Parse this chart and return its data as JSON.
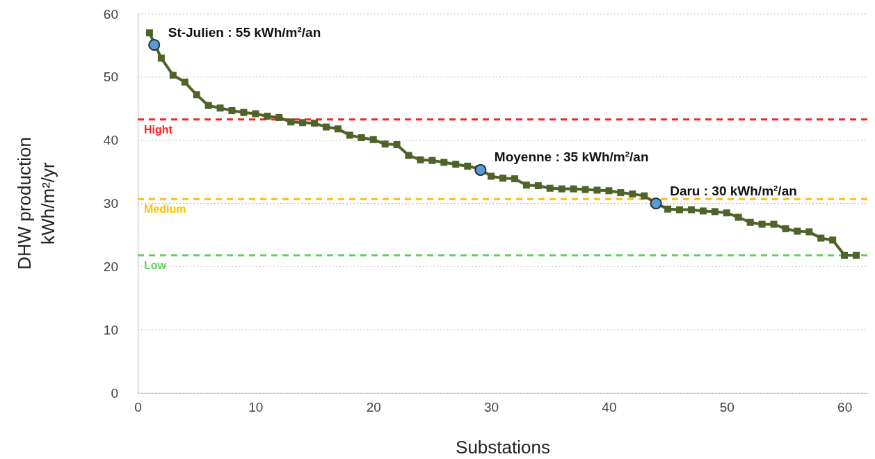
{
  "chart_data": {
    "type": "line",
    "xlabel": "Substations",
    "ylabel": "DHW production\nkWh/m²/yr",
    "xlim": [
      0,
      62
    ],
    "ylim": [
      0,
      60
    ],
    "xticks": [
      0,
      10,
      20,
      30,
      40,
      50,
      60
    ],
    "yticks": [
      0,
      10,
      20,
      30,
      40,
      50,
      60
    ],
    "grid": "y",
    "series": [
      {
        "color": "#4f6228",
        "marker": "square",
        "x": [
          1,
          2,
          3,
          4,
          5,
          6,
          7,
          8,
          9,
          10,
          11,
          12,
          13,
          14,
          15,
          16,
          17,
          18,
          19,
          20,
          21,
          22,
          23,
          24,
          25,
          26,
          27,
          28,
          29,
          30,
          31,
          32,
          33,
          34,
          35,
          36,
          37,
          38,
          39,
          40,
          41,
          42,
          43,
          44,
          45,
          46,
          47,
          48,
          49,
          50,
          51,
          52,
          53,
          54,
          55,
          56,
          57,
          58,
          59,
          60,
          61
        ],
        "values": [
          57,
          53,
          50.3,
          49.2,
          47.2,
          45.5,
          45.1,
          44.7,
          44.4,
          44.2,
          43.8,
          43.6,
          42.9,
          42.8,
          42.7,
          42.1,
          41.8,
          40.8,
          40.4,
          40.1,
          39.4,
          39.3,
          37.6,
          36.9,
          36.8,
          36.5,
          36.2,
          35.9,
          35.5,
          34.3,
          34,
          33.9,
          32.9,
          32.8,
          32.4,
          32.3,
          32.3,
          32.2,
          32.1,
          32,
          31.7,
          31.5,
          31.2,
          30,
          29.1,
          29,
          29,
          28.8,
          28.7,
          28.5,
          27.8,
          27,
          26.7,
          26.7,
          26,
          25.6,
          25.5,
          24.5,
          24.2,
          21.8,
          21.8
        ]
      },
      {
        "type": "scatter",
        "color": "#5b9bd5",
        "marker": "circle",
        "x": [
          1.4,
          29.1,
          44
        ],
        "values": [
          55.1,
          35.3,
          30
        ]
      }
    ],
    "ref_lines": [
      {
        "axis": "y",
        "value": 43.3,
        "label": "Hight",
        "color": "#ff2020",
        "line_style": "dashed"
      },
      {
        "axis": "y",
        "value": 30.7,
        "label": "Medium",
        "color": "#ffc000",
        "line_style": "dashed"
      },
      {
        "axis": "y",
        "value": 21.8,
        "label": "Low",
        "color": "#5ed25e",
        "line_style": "dashed"
      }
    ],
    "annotations": [
      {
        "text": "St-Julien : 55 kWh/m²/an",
        "x": 1.4,
        "y": 55.1
      },
      {
        "text": "Moyenne : 35 kWh/m²/an",
        "x": 29.1,
        "y": 35.3
      },
      {
        "text": "Daru : 30 kWh/m²/an",
        "x": 44,
        "y": 30
      }
    ]
  }
}
